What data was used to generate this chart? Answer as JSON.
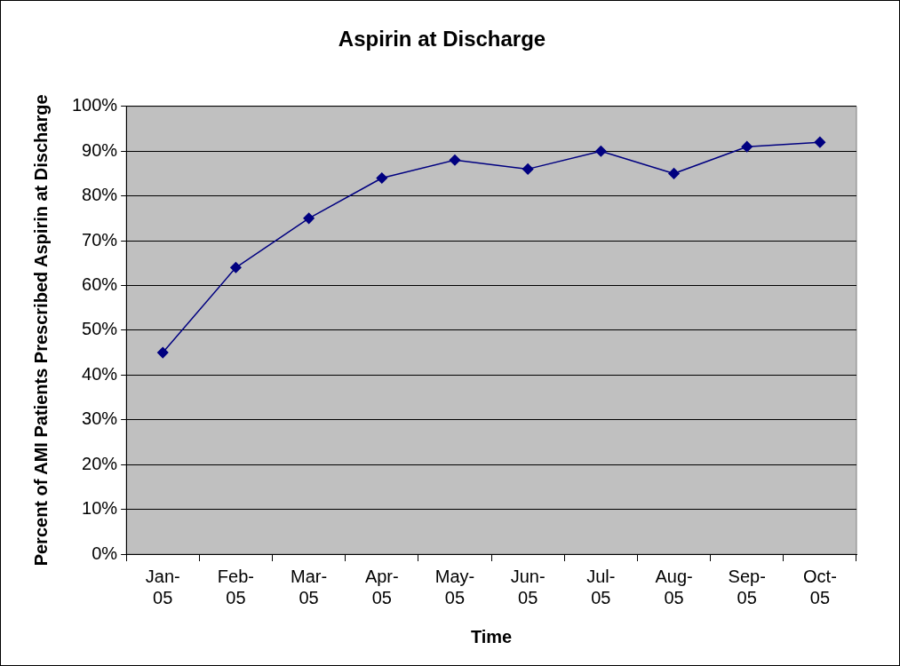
{
  "chart_data": {
    "type": "line",
    "title": "Aspirin at Discharge",
    "xlabel": "Time",
    "ylabel": "Percent of AMI Patients Prescribed Aspirin at Discharge",
    "categories": [
      "Jan-05",
      "Feb-05",
      "Mar-05",
      "Apr-05",
      "May-05",
      "Jun-05",
      "Jul-05",
      "Aug-05",
      "Sep-05",
      "Oct-05"
    ],
    "series": [
      {
        "color": "#000080",
        "values": [
          45,
          64,
          75,
          84,
          88,
          86,
          90,
          85,
          91,
          92
        ]
      }
    ],
    "ylim": [
      0,
      100
    ],
    "yticks": [
      {
        "value": 0,
        "label": "0%"
      },
      {
        "value": 10,
        "label": "10%"
      },
      {
        "value": 20,
        "label": "20%"
      },
      {
        "value": 30,
        "label": "30%"
      },
      {
        "value": 40,
        "label": "40%"
      },
      {
        "value": 50,
        "label": "50%"
      },
      {
        "value": 60,
        "label": "60%"
      },
      {
        "value": 70,
        "label": "70%"
      },
      {
        "value": 80,
        "label": "80%"
      },
      {
        "value": 90,
        "label": "90%"
      },
      {
        "value": 100,
        "label": "100%"
      }
    ],
    "grid": "y",
    "legend": false,
    "marker": "diamond",
    "line_style": "solid"
  }
}
